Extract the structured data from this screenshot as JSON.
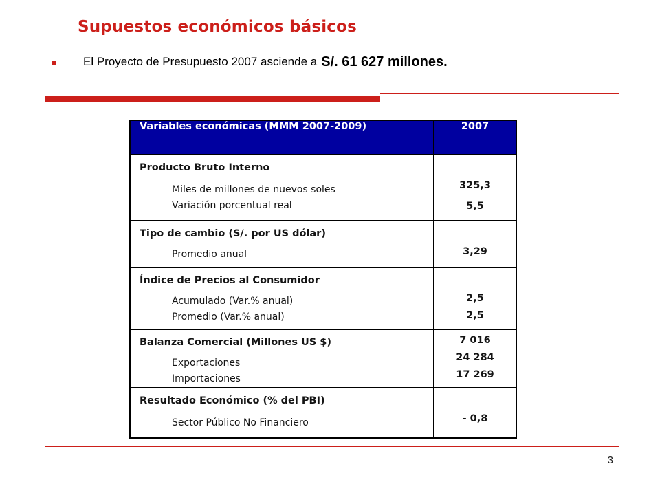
{
  "title": "Supuestos económicos básicos",
  "bullet": {
    "text": "El Proyecto de Presupuesto 2007 asciende a",
    "amount": "S/. 61 627 millones."
  },
  "table": {
    "header": {
      "variable": "Variables económicas (MMM 2007-2009)",
      "year": "2007"
    },
    "groups": [
      {
        "title": "Producto Bruto Interno",
        "items": [
          "Miles de millones de nuevos soles",
          "Variación porcentual real"
        ],
        "values": [
          "325,3",
          "5,5"
        ]
      },
      {
        "title": "Tipo de cambio (S/. por US dólar)",
        "items": [
          "Promedio anual"
        ],
        "values": [
          "3,29"
        ]
      },
      {
        "title": "Índice de Precios al Consumidor",
        "items": [
          "Acumulado (Var.% anual)",
          "Promedio (Var.% anual)"
        ],
        "values": [
          "2,5",
          "2,5"
        ]
      },
      {
        "title": "Balanza Comercial (Millones US $)",
        "items": [
          "Exportaciones",
          "Importaciones"
        ],
        "values": [
          "7 016",
          "24 284",
          "17 269"
        ]
      },
      {
        "title": "Resultado Económico (% del PBI)",
        "items": [
          "Sector Público No Financiero"
        ],
        "values": [
          "- 0,8"
        ]
      }
    ]
  },
  "page_number": "3",
  "colors": {
    "accent": "#cc1f1a",
    "header_bg": "#0000a0"
  }
}
